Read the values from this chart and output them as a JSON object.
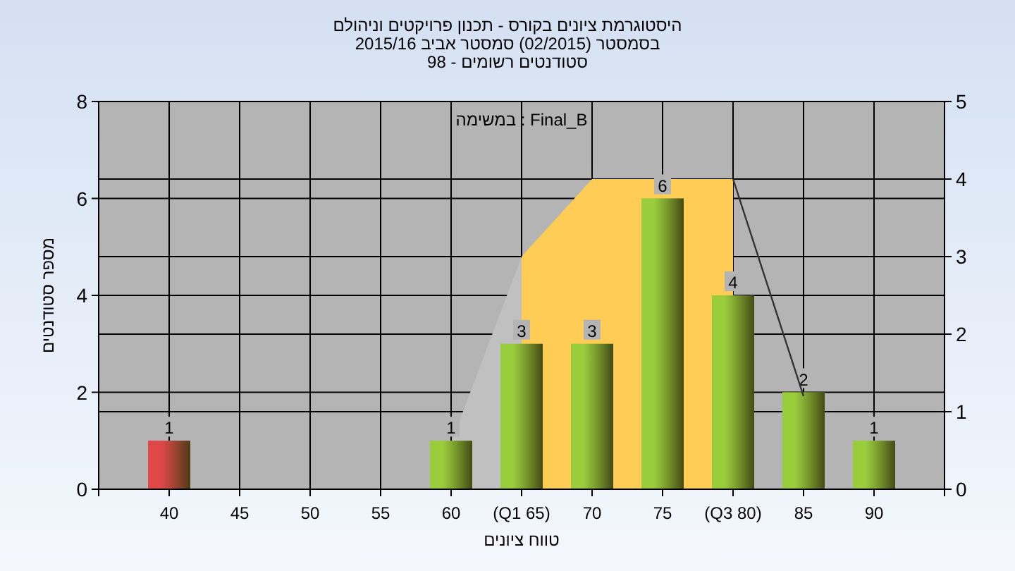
{
  "chart_data": {
    "type": "bar",
    "title": "היסטוגרמת ציונים בקורס - תכנון פרויקטים וניהולם",
    "subtitle": "בסמסטר  (02/2015)  סמסטר אביב 2015/16",
    "annotations": [
      "סטודנטים רשומים - 98",
      "Final_B : במשימה"
    ],
    "xlabel": "טווח ציונים",
    "ylabel": "מספר סטודנטים",
    "categories": [
      "40",
      "45",
      "50",
      "55",
      "60",
      "(Q1 65)",
      "70",
      "75",
      "(Q3 80)",
      "85",
      "90"
    ],
    "series": [
      {
        "type": "area",
        "axis": "y2",
        "color": "#c0c0c0",
        "values": [
          null,
          null,
          null,
          null,
          0.6,
          3,
          null,
          null,
          null,
          null,
          null
        ]
      },
      {
        "type": "area",
        "axis": "y2",
        "color": "#ffcc55",
        "values": [
          null,
          null,
          null,
          null,
          null,
          3,
          4,
          null,
          4,
          null,
          null
        ]
      },
      {
        "colors": [
          "#e04848",
          null,
          null,
          null,
          "#9acd3c",
          "#9acd3c",
          "#9acd3c",
          "#9acd3c",
          "#9acd3c",
          "#9acd3c",
          "#9acd3c"
        ],
        "values": [
          1,
          null,
          null,
          null,
          1,
          3,
          3,
          6,
          4,
          2,
          1
        ],
        "value_labels": [
          "1",
          null,
          null,
          null,
          "1",
          "3",
          "3",
          "6",
          "4",
          "2",
          "1"
        ]
      },
      {
        "type": "line",
        "axis": "y2",
        "color": "#333333",
        "values": [
          null,
          null,
          null,
          null,
          null,
          null,
          null,
          null,
          4,
          1.2,
          null
        ]
      }
    ],
    "ylim": [
      0,
      8
    ],
    "yticks": [
      0,
      2,
      4,
      6,
      8
    ],
    "y2lim": [
      0,
      5
    ],
    "y2ticks": [
      0,
      1,
      2,
      3,
      4,
      5
    ],
    "grid": true
  }
}
